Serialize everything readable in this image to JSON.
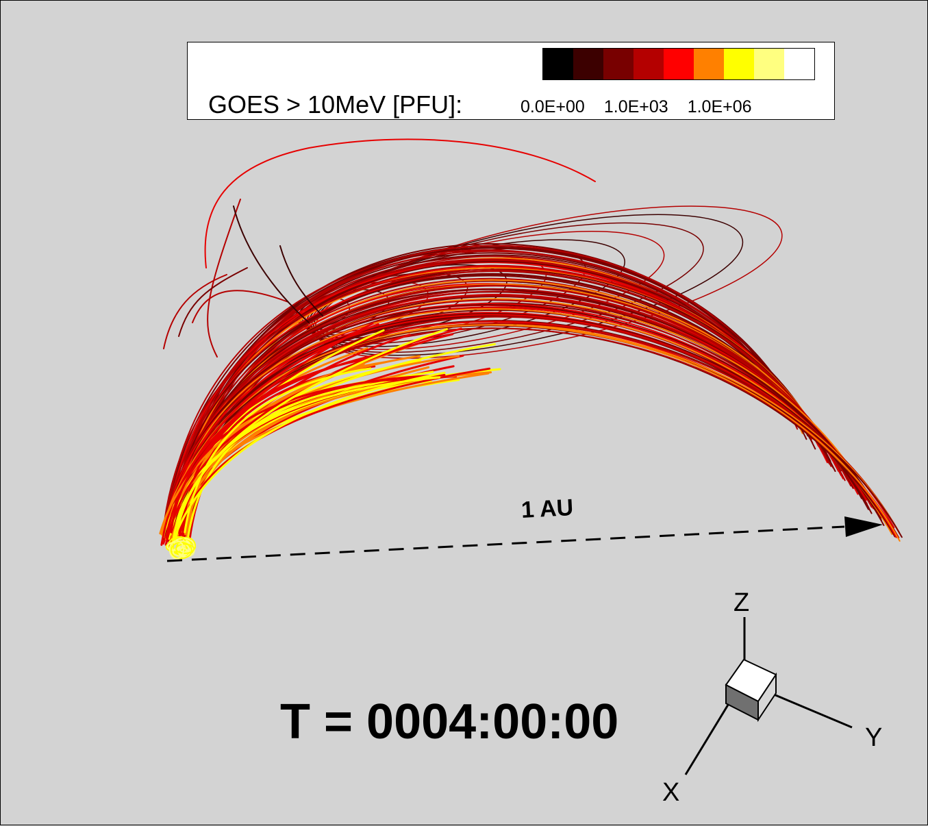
{
  "legend": {
    "title": "GOES > 10MeV [PFU]:",
    "ticks": [
      "0.0E+00",
      "1.0E+03",
      "1.0E+06"
    ],
    "colors": [
      "#000000",
      "#3c0000",
      "#780000",
      "#b40000",
      "#ff0000",
      "#ff8000",
      "#ffff00",
      "#ffff80",
      "#ffffff"
    ]
  },
  "annotations": {
    "distance_label": "1 AU",
    "time_label": "T = 0004:00:00"
  },
  "axes": {
    "z": "Z",
    "y": "Y",
    "x": "X"
  },
  "palette": {
    "background": "#d3d3d3",
    "line_dark": "#780000",
    "line_mid": "#b40000",
    "line_red": "#e60000",
    "line_orange": "#ff8000",
    "line_yellow": "#ffff00"
  }
}
